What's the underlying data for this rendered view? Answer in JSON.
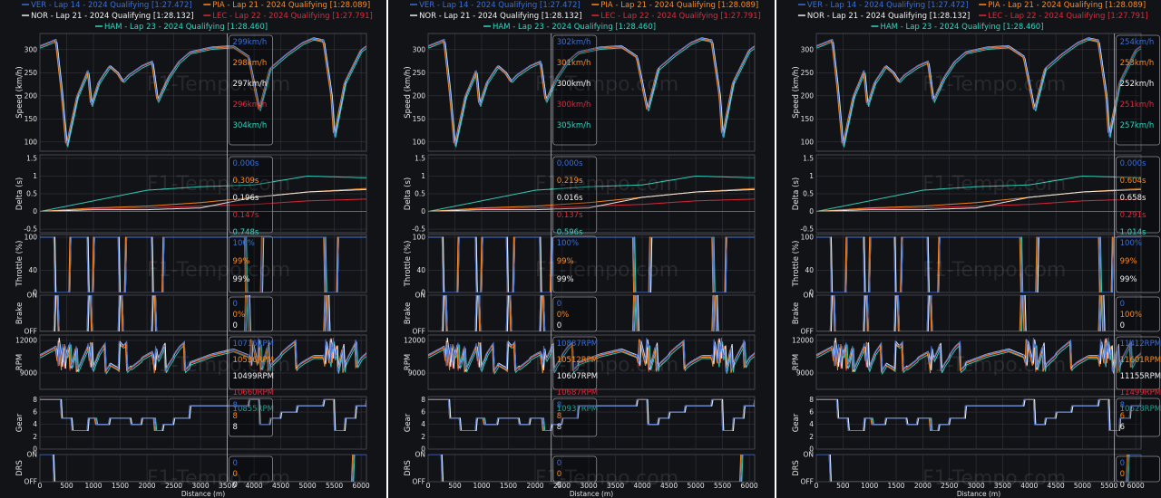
{
  "colors": {
    "VER": "#3b6fd8",
    "PIA": "#ff8a1e",
    "NOR": "#f2f2f2",
    "LEC": "#e3283b",
    "HAM": "#2fd6c0",
    "background": "#121317",
    "grid": "#3a3c44"
  },
  "legend": [
    {
      "driver": "VER",
      "label": "VER - Lap 14 - 2024 Qualifying [1:27.472]"
    },
    {
      "driver": "PIA",
      "label": "PIA - Lap 21 - 2024 Qualifying [1:28.089]"
    },
    {
      "driver": "NOR",
      "label": "NOR - Lap 21 - 2024 Qualifying [1:28.132]"
    },
    {
      "driver": "LEC",
      "label": "LEC - Lap 22 - 2024 Qualifying [1:27.791]"
    },
    {
      "driver": "HAM",
      "label": "HAM - Lap 23 - 2024 Qualifying [1:28.460]"
    }
  ],
  "watermark": "F1-Tempo.com",
  "x_axis": {
    "label": "Distance (m)",
    "ticks": [
      "0",
      "500",
      "1000",
      "1500",
      "2000",
      "2500",
      "3000",
      "3500",
      "4000",
      "4500",
      "5000",
      "5500",
      "6000"
    ],
    "range": [
      0,
      6100
    ]
  },
  "subplots": [
    {
      "key": "speed",
      "ylabel": "Speed (km/h)",
      "ticks": [
        "300",
        "250",
        "200",
        "150",
        "100"
      ]
    },
    {
      "key": "delta",
      "ylabel": "Delta (s)",
      "ticks": [
        "1.5",
        "1",
        "0.5",
        "0",
        "-0.5"
      ]
    },
    {
      "key": "throttle",
      "ylabel": "Throttle (%)",
      "ticks": [
        "100",
        "40",
        "0"
      ]
    },
    {
      "key": "brake",
      "ylabel": "Brake",
      "ticks": [
        "ON",
        "OFF"
      ]
    },
    {
      "key": "rpm",
      "ylabel": "RPM",
      "ticks": [
        "12000",
        "9000"
      ]
    },
    {
      "key": "gear",
      "ylabel": "Gear",
      "ticks": [
        "8",
        "6",
        "4",
        "2",
        "0"
      ]
    },
    {
      "key": "drs",
      "ylabel": "DRS",
      "ticks": [
        "ON",
        "OFF"
      ]
    }
  ],
  "panels": [
    {
      "name": "panel-1",
      "cursor_distance_m": 3500,
      "tooltip": {
        "speed": [
          "299km/h",
          "298km/h",
          "297km/h",
          "296km/h",
          "304km/h"
        ],
        "delta": [
          "0.000s",
          "0.309s",
          "0.196s",
          "0.147s",
          "0.748s"
        ],
        "throttle": [
          "100%",
          "99%",
          "99%"
        ],
        "brake": [
          "0",
          "0%",
          "0"
        ],
        "rpm": [
          "10716RPM",
          "10536RPM",
          "10499RPM",
          "10660RPM",
          "10855RPM"
        ],
        "gear": [
          "8",
          "8",
          "8"
        ],
        "drs": [
          "0",
          "0",
          "0"
        ]
      }
    },
    {
      "name": "panel-2",
      "cursor_distance_m": 2300,
      "tooltip": {
        "speed": [
          "302km/h",
          "301km/h",
          "300km/h",
          "300km/h",
          "305km/h"
        ],
        "delta": [
          "0.000s",
          "0.219s",
          "0.016s",
          "0.137s",
          "0.596s"
        ],
        "throttle": [
          "100%",
          "99%",
          "99%"
        ],
        "brake": [
          "0",
          "0%",
          "0"
        ],
        "rpm": [
          "10837RPM",
          "10512RPM",
          "10607RPM",
          "10687RPM",
          "10937RPM"
        ],
        "gear": [
          "8",
          "8",
          "8"
        ],
        "drs": [
          "0",
          "0",
          "0"
        ]
      }
    },
    {
      "name": "panel-3",
      "cursor_distance_m": 5600,
      "tooltip": {
        "speed": [
          "254km/h",
          "253km/h",
          "252km/h",
          "251km/h",
          "257km/h"
        ],
        "delta": [
          "0.000s",
          "0.604s",
          "0.658s",
          "0.291s",
          "1.014s"
        ],
        "throttle": [
          "100%",
          "99%",
          "99%"
        ],
        "brake": [
          "0",
          "100%",
          "0"
        ],
        "rpm": [
          "11412RPM",
          "11601RPM",
          "11155RPM",
          "11499RPM",
          "10628RPM"
        ],
        "gear": [
          "8",
          "6",
          "6"
        ],
        "drs": [
          "0",
          "0",
          "0"
        ]
      }
    }
  ],
  "chart_data": {
    "type": "line",
    "x_unit": "Distance (m)",
    "xlim": [
      0,
      6100
    ],
    "series": [
      {
        "name": "VER - Lap 14 - 2024 Qualifying [1:27.472]"
      },
      {
        "name": "PIA - Lap 21 - 2024 Qualifying [1:28.089]"
      },
      {
        "name": "NOR - Lap 21 - 2024 Qualifying [1:28.132]"
      },
      {
        "name": "LEC - Lap 22 - 2024 Qualifying [1:27.791]"
      },
      {
        "name": "HAM - Lap 23 - 2024 Qualifying [1:28.460]"
      }
    ],
    "speed_kmh": {
      "ylim": [
        80,
        335
      ],
      "x": [
        0,
        300,
        400,
        500,
        700,
        900,
        960,
        1100,
        1300,
        1450,
        1550,
        1650,
        1900,
        2100,
        2200,
        2400,
        2600,
        2800,
        3200,
        3600,
        3900,
        4100,
        4300,
        4600,
        4900,
        5100,
        5300,
        5450,
        5500,
        5700,
        6000,
        6100
      ],
      "values": [
        308,
        322,
        220,
        92,
        200,
        255,
        180,
        230,
        265,
        250,
        232,
        245,
        265,
        275,
        190,
        240,
        275,
        295,
        305,
        308,
        285,
        170,
        260,
        290,
        315,
        325,
        320,
        200,
        112,
        230,
        300,
        308
      ]
    },
    "delta_s": {
      "ylim": [
        -0.6,
        1.6
      ],
      "x": [
        0,
        1000,
        2000,
        3000,
        4000,
        5000,
        6100
      ],
      "VER": [
        0,
        0,
        0,
        0,
        0,
        0,
        0
      ],
      "PIA": [
        0,
        0.1,
        0.15,
        0.25,
        0.4,
        0.55,
        0.65
      ],
      "NOR": [
        0,
        0.05,
        0.05,
        0.1,
        0.4,
        0.55,
        0.62
      ],
      "LEC": [
        0,
        0.08,
        0.1,
        0.15,
        0.2,
        0.3,
        0.35
      ],
      "HAM": [
        0,
        0.3,
        0.6,
        0.7,
        0.75,
        1.0,
        0.95
      ]
    },
    "throttle_pct": {
      "ylim": [
        0,
        105
      ],
      "off_zones_m": [
        [
          280,
          560
        ],
        [
          900,
          1000
        ],
        [
          1480,
          1600
        ],
        [
          2100,
          2300
        ],
        [
          3850,
          4150
        ],
        [
          5330,
          5560
        ]
      ]
    },
    "rpm": {
      "ylim": [
        7500,
        12500
      ]
    },
    "gear": {
      "ylim": [
        0,
        8.5
      ],
      "x": [
        0,
        300,
        400,
        600,
        900,
        1050,
        1300,
        1500,
        1700,
        1900,
        2150,
        2300,
        2500,
        2800,
        3900,
        4100,
        4300,
        4500,
        4800,
        5300,
        5500,
        5700,
        5900,
        6100
      ],
      "values": [
        8,
        8,
        5,
        3,
        5,
        4,
        5,
        5,
        4,
        5,
        3,
        4,
        5,
        7,
        8,
        4,
        5,
        6,
        7,
        8,
        3,
        5,
        7,
        8
      ]
    },
    "drs": {
      "off_from_m": 260,
      "on_from_m": 5850
    }
  }
}
